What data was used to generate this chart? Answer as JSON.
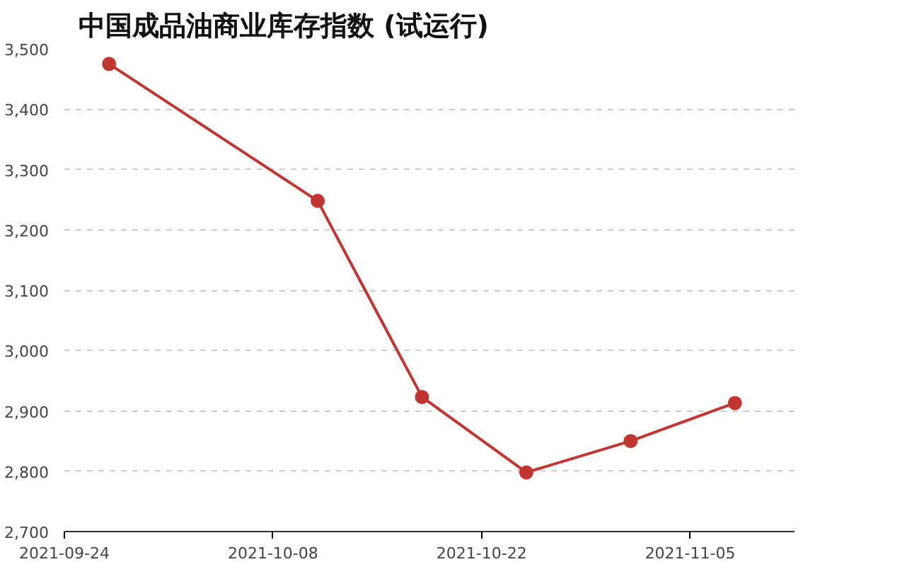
{
  "chart_data": {
    "type": "line",
    "title": "中国成品油商业库存指数 (试运行)",
    "x": [
      "2021-09-27",
      "2021-10-11",
      "2021-10-18",
      "2021-10-25",
      "2021-11-01",
      "2021-11-08"
    ],
    "series": [
      {
        "color": "#c23531",
        "values": [
          3475,
          3248,
          2923,
          2798,
          2850,
          2913
        ]
      }
    ],
    "xlim": [
      "2021-09-24",
      "2021-11-12"
    ],
    "xticks": [
      "2021-09-24",
      "2021-10-08",
      "2021-10-22",
      "2021-11-05"
    ],
    "ylim": [
      2700,
      3500
    ],
    "yticks": [
      {
        "value": 2700,
        "label": "2,700"
      },
      {
        "value": 2800,
        "label": "2,800"
      },
      {
        "value": 2900,
        "label": "2,900"
      },
      {
        "value": 3000,
        "label": "3,000"
      },
      {
        "value": 3100,
        "label": "3,100"
      },
      {
        "value": 3200,
        "label": "3,200"
      },
      {
        "value": 3300,
        "label": "3,300"
      },
      {
        "value": 3400,
        "label": "3,400"
      },
      {
        "value": 3500,
        "label": "3,500"
      }
    ],
    "grid": "y",
    "marker": "circle",
    "line_style": "solid"
  }
}
